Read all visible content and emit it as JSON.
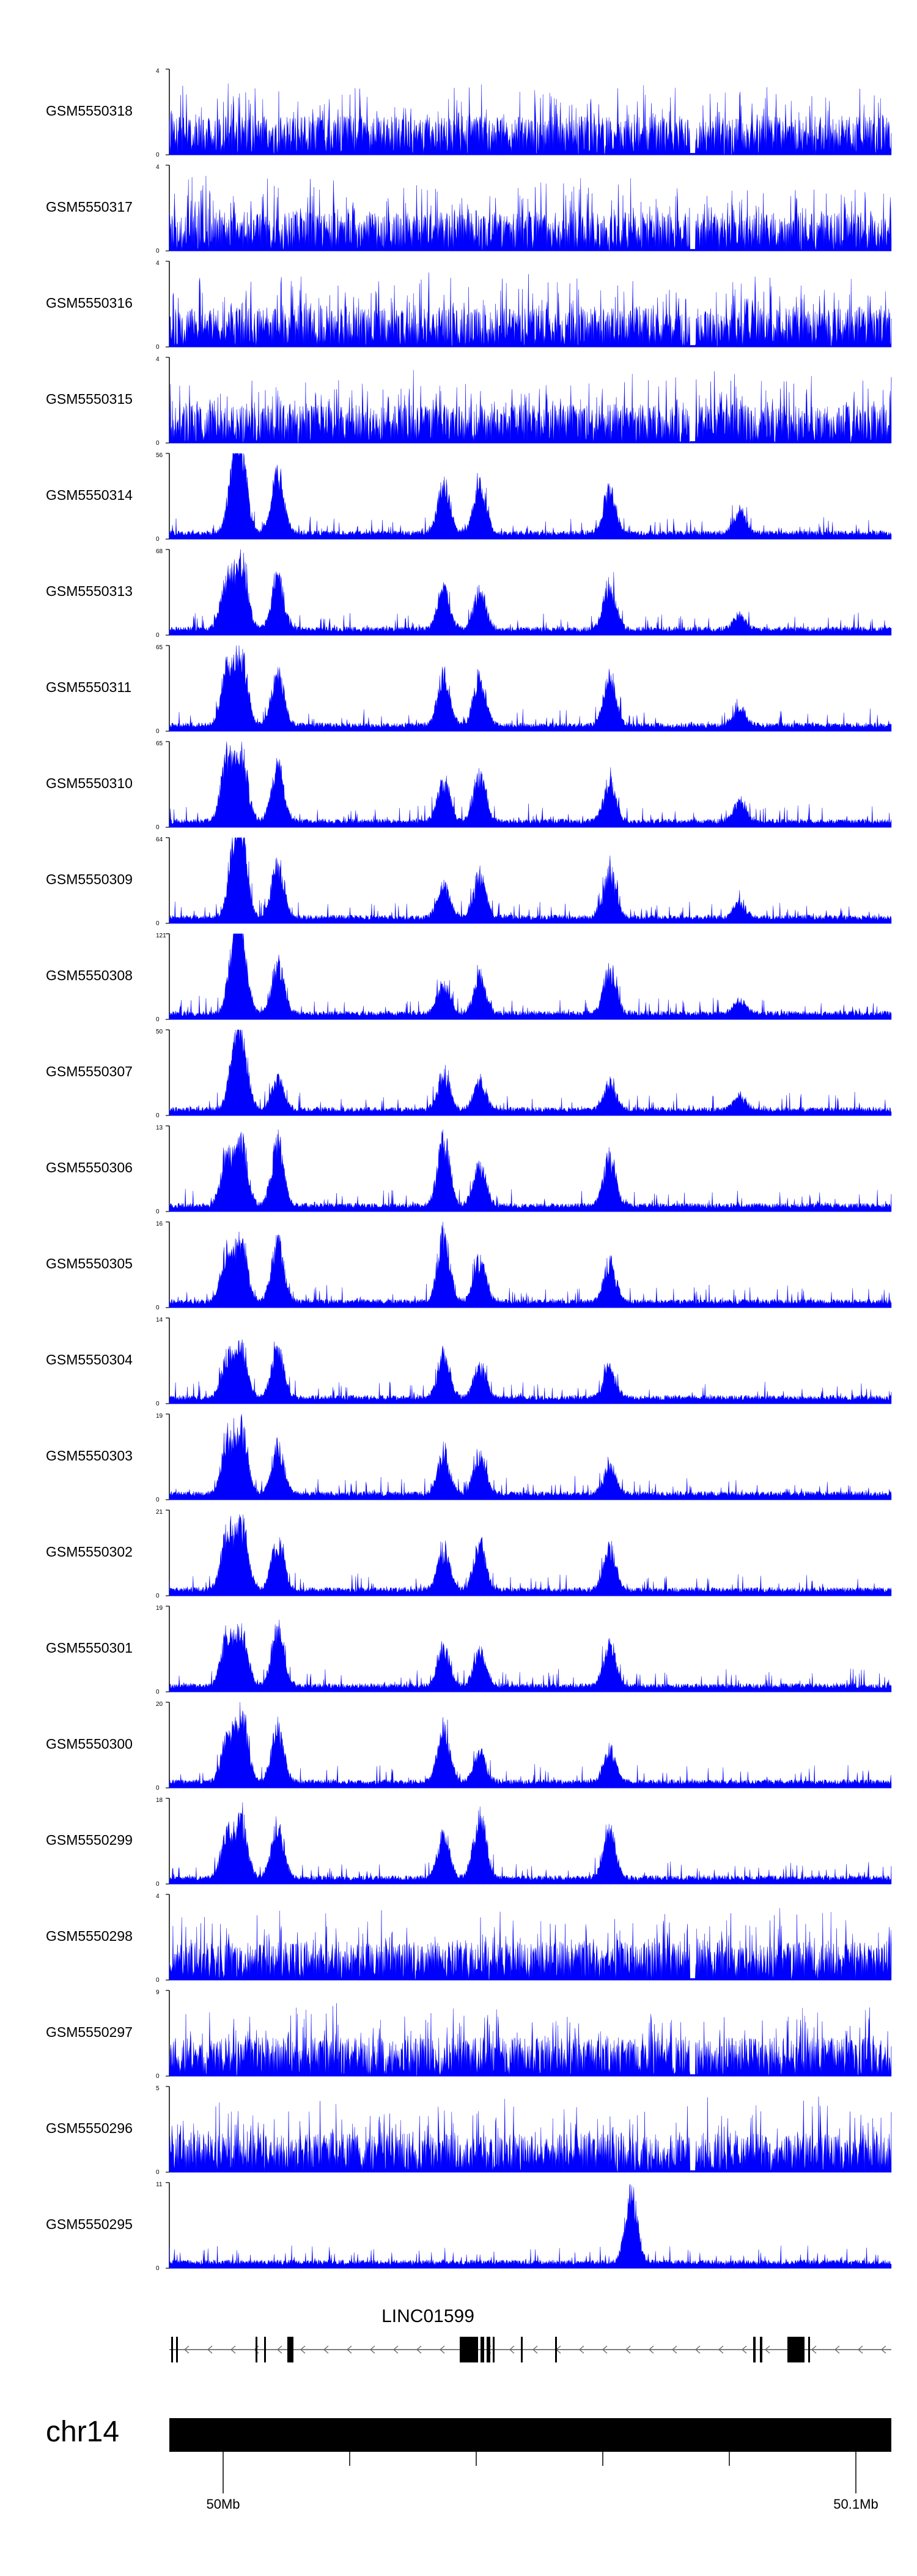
{
  "chart_data": {
    "type": "area",
    "title": "",
    "x_axis": {
      "region_label": "chr14",
      "tick_labels": [
        "50Mb",
        "50.1Mb"
      ]
    },
    "gene_track": {
      "gene_label": "LINC01599",
      "strand": "-"
    },
    "series": [
      {
        "name": "GSM5550318",
        "ylim": [
          0,
          4
        ],
        "peaks": []
      },
      {
        "name": "GSM5550317",
        "ylim": [
          0,
          4
        ],
        "peaks": []
      },
      {
        "name": "GSM5550316",
        "ylim": [
          0,
          4
        ],
        "peaks": []
      },
      {
        "name": "GSM5550315",
        "ylim": [
          0,
          4
        ],
        "peaks": []
      },
      {
        "name": "GSM5550314",
        "ylim": [
          0,
          56
        ],
        "peaks": [
          [
            0.09,
            0.85
          ],
          [
            0.1,
            0.95
          ],
          [
            0.15,
            0.85
          ],
          [
            0.38,
            0.7
          ],
          [
            0.43,
            0.75
          ],
          [
            0.61,
            0.6
          ],
          [
            0.79,
            0.3
          ]
        ]
      },
      {
        "name": "GSM5550313",
        "ylim": [
          0,
          68
        ],
        "peaks": [
          [
            0.08,
            0.7
          ],
          [
            0.1,
            0.95
          ],
          [
            0.15,
            0.75
          ],
          [
            0.38,
            0.6
          ],
          [
            0.43,
            0.55
          ],
          [
            0.61,
            0.65
          ],
          [
            0.79,
            0.2
          ]
        ]
      },
      {
        "name": "GSM5550311",
        "ylim": [
          0,
          65
        ],
        "peaks": [
          [
            0.08,
            0.8
          ],
          [
            0.1,
            0.95
          ],
          [
            0.15,
            0.75
          ],
          [
            0.38,
            0.7
          ],
          [
            0.43,
            0.7
          ],
          [
            0.61,
            0.7
          ],
          [
            0.79,
            0.25
          ]
        ]
      },
      {
        "name": "GSM5550310",
        "ylim": [
          0,
          65
        ],
        "peaks": [
          [
            0.08,
            0.9
          ],
          [
            0.1,
            0.95
          ],
          [
            0.15,
            0.8
          ],
          [
            0.38,
            0.6
          ],
          [
            0.43,
            0.65
          ],
          [
            0.61,
            0.55
          ],
          [
            0.79,
            0.3
          ]
        ]
      },
      {
        "name": "GSM5550309",
        "ylim": [
          0,
          64
        ],
        "peaks": [
          [
            0.09,
            0.8
          ],
          [
            0.1,
            0.95
          ],
          [
            0.15,
            0.75
          ],
          [
            0.38,
            0.45
          ],
          [
            0.43,
            0.6
          ],
          [
            0.61,
            0.65
          ],
          [
            0.79,
            0.2
          ]
        ]
      },
      {
        "name": "GSM5550308",
        "ylim": [
          0,
          121
        ],
        "peaks": [
          [
            0.09,
            0.85
          ],
          [
            0.1,
            0.95
          ],
          [
            0.15,
            0.7
          ],
          [
            0.38,
            0.45
          ],
          [
            0.43,
            0.5
          ],
          [
            0.61,
            0.65
          ],
          [
            0.79,
            0.2
          ]
        ]
      },
      {
        "name": "GSM5550307",
        "ylim": [
          0,
          50
        ],
        "peaks": [
          [
            0.09,
            0.6
          ],
          [
            0.1,
            0.95
          ],
          [
            0.15,
            0.45
          ],
          [
            0.38,
            0.5
          ],
          [
            0.43,
            0.4
          ],
          [
            0.61,
            0.4
          ],
          [
            0.79,
            0.2
          ]
        ]
      },
      {
        "name": "GSM5550306",
        "ylim": [
          0,
          13
        ],
        "peaks": [
          [
            0.08,
            0.7
          ],
          [
            0.1,
            0.85
          ],
          [
            0.15,
            0.9
          ],
          [
            0.38,
            0.95
          ],
          [
            0.43,
            0.6
          ],
          [
            0.61,
            0.7
          ]
        ]
      },
      {
        "name": "GSM5550305",
        "ylim": [
          0,
          16
        ],
        "peaks": [
          [
            0.08,
            0.7
          ],
          [
            0.1,
            0.8
          ],
          [
            0.15,
            0.85
          ],
          [
            0.38,
            0.95
          ],
          [
            0.43,
            0.6
          ],
          [
            0.61,
            0.55
          ]
        ]
      },
      {
        "name": "GSM5550304",
        "ylim": [
          0,
          14
        ],
        "peaks": [
          [
            0.08,
            0.55
          ],
          [
            0.1,
            0.7
          ],
          [
            0.15,
            0.7
          ],
          [
            0.38,
            0.6
          ],
          [
            0.43,
            0.45
          ],
          [
            0.61,
            0.45
          ]
        ]
      },
      {
        "name": "GSM5550303",
        "ylim": [
          0,
          19
        ],
        "peaks": [
          [
            0.08,
            0.7
          ],
          [
            0.1,
            0.9
          ],
          [
            0.15,
            0.65
          ],
          [
            0.38,
            0.6
          ],
          [
            0.43,
            0.55
          ],
          [
            0.61,
            0.4
          ]
        ]
      },
      {
        "name": "GSM5550302",
        "ylim": [
          0,
          21
        ],
        "peaks": [
          [
            0.08,
            0.75
          ],
          [
            0.1,
            0.95
          ],
          [
            0.15,
            0.7
          ],
          [
            0.38,
            0.55
          ],
          [
            0.43,
            0.65
          ],
          [
            0.61,
            0.6
          ]
        ]
      },
      {
        "name": "GSM5550301",
        "ylim": [
          0,
          19
        ],
        "peaks": [
          [
            0.08,
            0.65
          ],
          [
            0.1,
            0.75
          ],
          [
            0.15,
            0.85
          ],
          [
            0.38,
            0.55
          ],
          [
            0.43,
            0.5
          ],
          [
            0.61,
            0.6
          ]
        ]
      },
      {
        "name": "GSM5550300",
        "ylim": [
          0,
          20
        ],
        "peaks": [
          [
            0.08,
            0.6
          ],
          [
            0.1,
            0.95
          ],
          [
            0.15,
            0.75
          ],
          [
            0.38,
            0.75
          ],
          [
            0.43,
            0.4
          ],
          [
            0.61,
            0.45
          ]
        ]
      },
      {
        "name": "GSM5550299",
        "ylim": [
          0,
          18
        ],
        "peaks": [
          [
            0.08,
            0.6
          ],
          [
            0.1,
            0.75
          ],
          [
            0.15,
            0.8
          ],
          [
            0.38,
            0.6
          ],
          [
            0.43,
            0.95
          ],
          [
            0.61,
            0.7
          ]
        ]
      },
      {
        "name": "GSM5550298",
        "ylim": [
          0,
          4
        ],
        "peaks": []
      },
      {
        "name": "GSM5550297",
        "ylim": [
          0,
          9
        ],
        "peaks": []
      },
      {
        "name": "GSM5550296",
        "ylim": [
          0,
          5
        ],
        "peaks": []
      },
      {
        "name": "GSM5550295",
        "ylim": [
          0,
          11
        ],
        "peaks": [
          [
            0.64,
            0.95
          ]
        ]
      }
    ]
  },
  "style": {
    "signal_color": "#0000ff",
    "axis_color": "#000000",
    "region_bar_color": "#000000"
  }
}
